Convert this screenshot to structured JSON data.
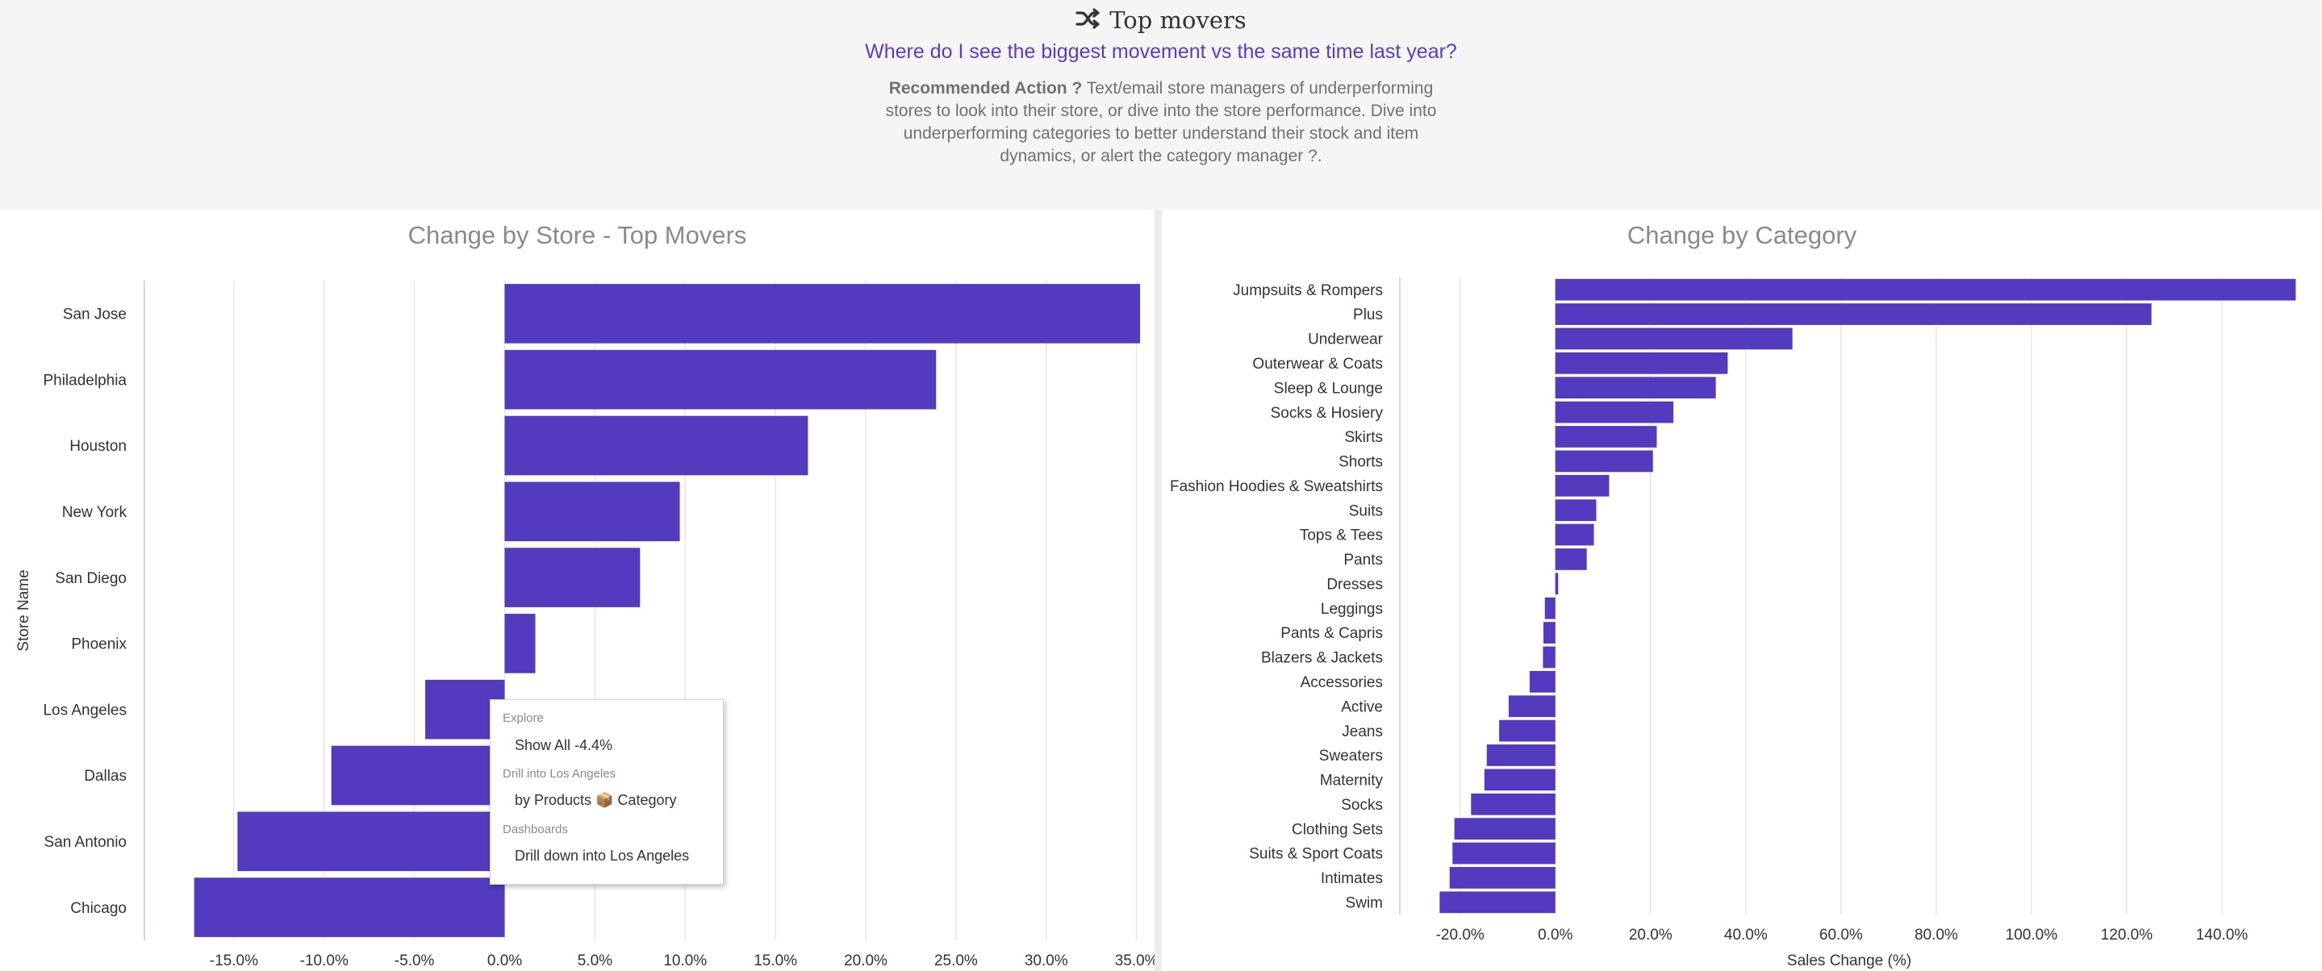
{
  "header": {
    "title": "Top movers",
    "title_icon": "shuffle-icon",
    "subtitle": "Where do I see the biggest movement vs the same time last year?",
    "recommended_label": "Recommended Action ?",
    "recommended_text": " Text/email store managers of underperforming stores to look into their store, or dive into the store performance. Dive into underperforming categories to better understand their stock and item dynamics, or alert the category manager ?."
  },
  "tooltip": {
    "explore_heading": "Explore",
    "show_all": "Show All -4.4%",
    "drill_heading": "Drill into Los Angeles",
    "by_products": "by Products",
    "package_emoji": "📦",
    "category": "Category",
    "dashboards_heading": "Dashboards",
    "drill_down": "Drill down into Los Angeles"
  },
  "chart_data": [
    {
      "type": "bar",
      "orientation": "horizontal",
      "title": "Change by Store - Top Movers",
      "ylabel": "Store Name",
      "xlabel": "",
      "categories": [
        "San Jose",
        "Philadelphia",
        "Houston",
        "New York",
        "San Diego",
        "Phoenix",
        "Los Angeles",
        "Dallas",
        "San Antonio",
        "Chicago"
      ],
      "values": [
        35.2,
        23.9,
        16.8,
        9.7,
        7.5,
        1.7,
        -4.4,
        -9.6,
        -14.8,
        -17.2
      ],
      "xlim": [
        -20,
        36
      ],
      "x_ticks": [
        -15,
        -10,
        -5,
        0,
        5,
        10,
        15,
        20,
        25,
        30,
        35
      ],
      "x_tick_labels": [
        "-15.0%",
        "-10.0%",
        "-5.0%",
        "0.0%",
        "5.0%",
        "10.0%",
        "15.0%",
        "20.0%",
        "25.0%",
        "30.0%",
        "35.0%"
      ],
      "grid": true,
      "color": "#533ABE"
    },
    {
      "type": "bar",
      "orientation": "horizontal",
      "title": "Change by Category",
      "xlabel": "Sales Change (%)",
      "ylabel": "",
      "categories": [
        "Jumpsuits & Rompers",
        "Plus",
        "Underwear",
        "Outerwear & Coats",
        "Sleep & Lounge",
        "Socks & Hosiery",
        "Skirts",
        "Shorts",
        "Fashion Hoodies & Sweatshirts",
        "Suits",
        "Tops & Tees",
        "Pants",
        "Dresses",
        "Leggings",
        "Pants & Capris",
        "Blazers & Jackets",
        "Accessories",
        "Active",
        "Jeans",
        "Sweaters",
        "Maternity",
        "Socks",
        "Clothing Sets",
        "Suits & Sport Coats",
        "Intimates",
        "Swim"
      ],
      "values": [
        155.5,
        125.2,
        49.8,
        36.2,
        33.7,
        24.8,
        21.3,
        20.5,
        11.3,
        8.6,
        8.1,
        6.6,
        0.6,
        -2.2,
        -2.5,
        -2.6,
        -5.4,
        -9.8,
        -11.8,
        -14.4,
        -14.9,
        -17.7,
        -21.2,
        -21.6,
        -22.2,
        -24.3
      ],
      "xlim": [
        -33,
        160
      ],
      "x_ticks": [
        -20,
        0,
        20,
        40,
        60,
        80,
        100,
        120,
        140
      ],
      "x_tick_labels": [
        "-20.0%",
        "0.0%",
        "20.0%",
        "40.0%",
        "60.0%",
        "80.0%",
        "100.0%",
        "120.0%",
        "140.0%"
      ],
      "grid": true,
      "color": "#533ABE"
    }
  ]
}
